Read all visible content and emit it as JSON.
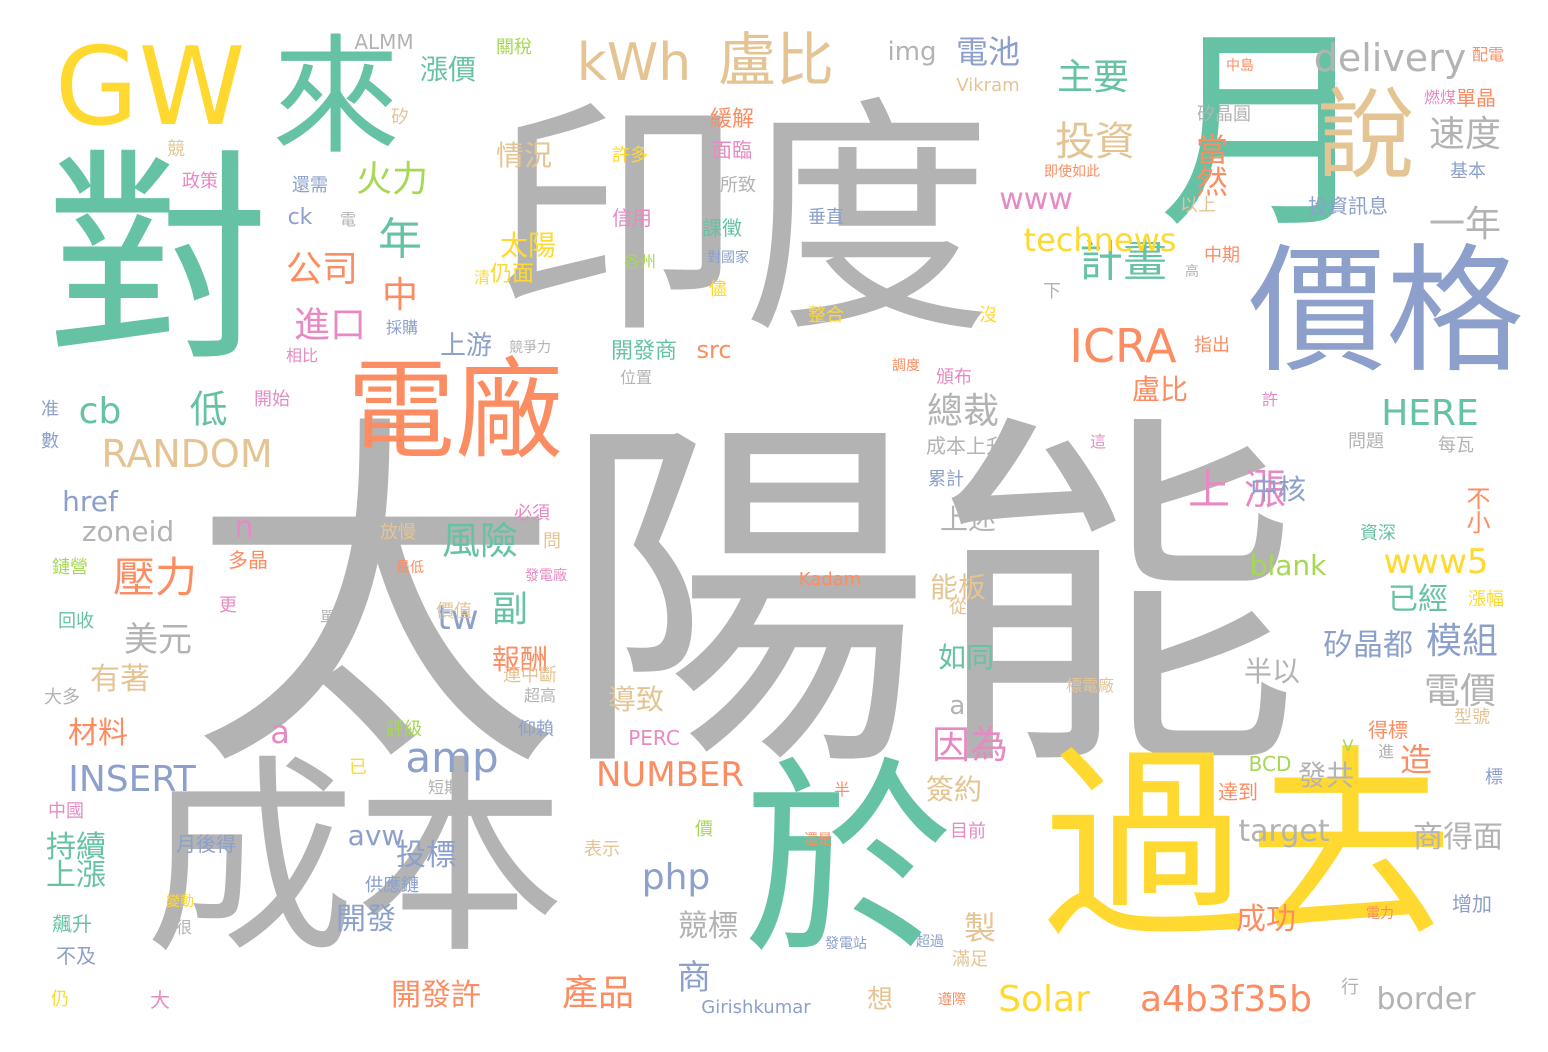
{
  "colors": {
    "gray": "#b3b3b3",
    "teal": "#66c2a5",
    "yellow": "#ffd92f",
    "blue": "#8da0cb",
    "orange": "#fc8d62",
    "tan": "#e5c494",
    "green": "#a6d854",
    "pink": "#e78ac3",
    "background": "#ffffff"
  },
  "words": [
    {
      "text": "太陽能",
      "color": "gray"
    },
    {
      "text": "印度",
      "color": "gray"
    },
    {
      "text": "成本",
      "color": "gray"
    },
    {
      "text": "過去",
      "color": "yellow"
    },
    {
      "text": "於",
      "color": "teal"
    },
    {
      "text": "對",
      "color": "teal"
    },
    {
      "text": "月",
      "color": "teal"
    },
    {
      "text": "價格",
      "color": "blue"
    },
    {
      "text": "電廠",
      "color": "orange"
    },
    {
      "text": "來",
      "color": "teal"
    },
    {
      "text": "GW",
      "color": "yellow"
    },
    {
      "text": "說",
      "color": "tan"
    },
    {
      "text": "kWh",
      "color": "tan"
    },
    {
      "text": "盧比",
      "color": "tan"
    },
    {
      "text": "delivery",
      "color": "gray"
    },
    {
      "text": "ICRA",
      "color": "orange"
    },
    {
      "text": "計畫",
      "color": "teal"
    },
    {
      "text": "投資",
      "color": "tan"
    },
    {
      "text": "主要",
      "color": "teal"
    },
    {
      "text": "速度",
      "color": "gray"
    },
    {
      "text": "一年",
      "color": "gray"
    },
    {
      "text": "technews",
      "color": "yellow"
    },
    {
      "text": "www",
      "color": "pink"
    },
    {
      "text": "當然",
      "color": "orange"
    },
    {
      "text": "火力",
      "color": "green"
    },
    {
      "text": "年",
      "color": "teal"
    },
    {
      "text": "公司",
      "color": "orange"
    },
    {
      "text": "中",
      "color": "orange"
    },
    {
      "text": "進口",
      "color": "pink"
    },
    {
      "text": "amp",
      "color": "blue"
    },
    {
      "text": "RANDOM",
      "color": "tan"
    },
    {
      "text": "低",
      "color": "teal"
    },
    {
      "text": "cb",
      "color": "teal"
    },
    {
      "text": "壓力",
      "color": "orange"
    },
    {
      "text": "風險",
      "color": "teal"
    },
    {
      "text": "因為",
      "color": "pink"
    },
    {
      "text": "總裁",
      "color": "gray"
    },
    {
      "text": "上漲",
      "color": "pink"
    },
    {
      "text": "盧比",
      "color": "orange"
    },
    {
      "text": "HERE",
      "color": "teal"
    },
    {
      "text": "www5",
      "color": "yellow"
    },
    {
      "text": "INSERT",
      "color": "blue"
    },
    {
      "text": "NUMBER",
      "color": "orange"
    },
    {
      "text": "php",
      "color": "blue"
    },
    {
      "text": "Solar",
      "color": "yellow"
    },
    {
      "text": "a4b3f35b",
      "color": "orange"
    },
    {
      "text": "border",
      "color": "gray"
    },
    {
      "text": "target",
      "color": "gray"
    },
    {
      "text": "商得面",
      "color": "gray"
    },
    {
      "text": "電價",
      "color": "gray"
    },
    {
      "text": "模組",
      "color": "blue"
    },
    {
      "text": "矽晶都",
      "color": "blue"
    },
    {
      "text": "已經",
      "color": "teal"
    },
    {
      "text": "美元",
      "color": "gray"
    },
    {
      "text": "tw",
      "color": "blue"
    },
    {
      "text": "副",
      "color": "teal"
    },
    {
      "text": "產品",
      "color": "orange"
    },
    {
      "text": "商",
      "color": "blue"
    },
    {
      "text": "成功",
      "color": "orange"
    },
    {
      "text": "競標",
      "color": "gray"
    },
    {
      "text": "開發許",
      "color": "orange"
    },
    {
      "text": "投標",
      "color": "blue"
    },
    {
      "text": "開發",
      "color": "blue"
    },
    {
      "text": "持續",
      "color": "teal"
    },
    {
      "text": "上漲",
      "color": "teal"
    },
    {
      "text": "材料",
      "color": "orange"
    },
    {
      "text": "有著",
      "color": "tan"
    },
    {
      "text": "zoneid",
      "color": "gray"
    },
    {
      "text": "href",
      "color": "blue"
    },
    {
      "text": "電池",
      "color": "blue"
    },
    {
      "text": "img",
      "color": "gray"
    },
    {
      "text": "漲價",
      "color": "teal"
    },
    {
      "text": "情況",
      "color": "tan"
    },
    {
      "text": "太陽",
      "color": "yellow"
    },
    {
      "text": "仍面",
      "color": "yellow"
    },
    {
      "text": "上游",
      "color": "blue"
    },
    {
      "text": "src",
      "color": "orange"
    },
    {
      "text": "開發商",
      "color": "teal"
    },
    {
      "text": "報酬",
      "color": "orange"
    },
    {
      "text": "導致",
      "color": "tan"
    },
    {
      "text": "簽約",
      "color": "tan"
    },
    {
      "text": "如同",
      "color": "teal"
    },
    {
      "text": "能板",
      "color": "tan"
    },
    {
      "text": "中核",
      "color": "blue"
    },
    {
      "text": "blank",
      "color": "green"
    },
    {
      "text": "半以",
      "color": "gray"
    },
    {
      "text": "上述",
      "color": "gray"
    },
    {
      "text": "alt",
      "color": "gray"
    },
    {
      "text": "a",
      "color": "pink"
    },
    {
      "text": "avw",
      "color": "blue"
    },
    {
      "text": "發共",
      "color": "gray"
    },
    {
      "text": "造",
      "color": "orange"
    },
    {
      "text": "製",
      "color": "tan"
    },
    {
      "text": "不小",
      "color": "orange"
    },
    {
      "text": "n",
      "color": "pink"
    },
    {
      "text": "ck",
      "color": "blue"
    },
    {
      "text": "電",
      "color": "gray"
    },
    {
      "text": "ALMM",
      "color": "gray"
    },
    {
      "text": "關稅",
      "color": "green"
    },
    {
      "text": "Vikram",
      "color": "tan"
    },
    {
      "text": "矽晶圓",
      "color": "gray"
    },
    {
      "text": "單晶",
      "color": "orange"
    },
    {
      "text": "配電",
      "color": "orange"
    },
    {
      "text": "緩解",
      "color": "orange"
    },
    {
      "text": "面臨",
      "color": "pink"
    },
    {
      "text": "許多",
      "color": "yellow"
    },
    {
      "text": "所致",
      "color": "gray"
    },
    {
      "text": "信用",
      "color": "pink"
    },
    {
      "text": "課徵",
      "color": "teal"
    },
    {
      "text": "垂直",
      "color": "blue"
    },
    {
      "text": "整合",
      "color": "yellow"
    },
    {
      "text": "以上",
      "color": "tan"
    },
    {
      "text": "投資訊息",
      "color": "blue"
    },
    {
      "text": "政策",
      "color": "pink"
    },
    {
      "text": "還需",
      "color": "blue"
    },
    {
      "text": "矽",
      "color": "tan"
    },
    {
      "text": "競",
      "color": "tan"
    },
    {
      "text": "基本",
      "color": "blue"
    },
    {
      "text": "燃煤",
      "color": "pink"
    },
    {
      "text": "中國",
      "color": "pink"
    },
    {
      "text": "月後得",
      "color": "blue"
    },
    {
      "text": "表示",
      "color": "tan"
    },
    {
      "text": "目前",
      "color": "pink"
    },
    {
      "text": "供應鏈",
      "color": "blue"
    },
    {
      "text": "飆升",
      "color": "teal"
    },
    {
      "text": "不及",
      "color": "blue"
    },
    {
      "text": "仍",
      "color": "yellow"
    },
    {
      "text": "大",
      "color": "pink"
    },
    {
      "text": "想",
      "color": "tan"
    },
    {
      "text": "Girishkumar",
      "color": "blue"
    },
    {
      "text": "滿足",
      "color": "tan"
    },
    {
      "text": "行",
      "color": "gray"
    },
    {
      "text": "增加",
      "color": "blue"
    },
    {
      "text": "達到",
      "color": "orange"
    },
    {
      "text": "BCD",
      "color": "green"
    },
    {
      "text": "PERC",
      "color": "pink"
    },
    {
      "text": "評級",
      "color": "green"
    },
    {
      "text": "仰賴",
      "color": "blue"
    },
    {
      "text": "短期",
      "color": "gray"
    },
    {
      "text": "價值",
      "color": "tan"
    },
    {
      "text": "必須",
      "color": "pink"
    },
    {
      "text": "放慢",
      "color": "tan"
    },
    {
      "text": "多晶",
      "color": "orange"
    },
    {
      "text": "鏈營",
      "color": "green"
    },
    {
      "text": "回收",
      "color": "teal"
    },
    {
      "text": "大多",
      "color": "gray"
    },
    {
      "text": "准",
      "color": "blue"
    },
    {
      "text": "數",
      "color": "blue"
    },
    {
      "text": "開始",
      "color": "pink"
    },
    {
      "text": "相比",
      "color": "pink"
    },
    {
      "text": "採購",
      "color": "blue"
    },
    {
      "text": "競爭力",
      "color": "gray"
    },
    {
      "text": "位置",
      "color": "gray"
    },
    {
      "text": "頒布",
      "color": "pink"
    },
    {
      "text": "調度",
      "color": "orange"
    },
    {
      "text": "成本上升",
      "color": "gray"
    },
    {
      "text": "累計",
      "color": "blue"
    },
    {
      "text": "Kadam",
      "color": "orange"
    },
    {
      "text": "發電廠",
      "color": "pink"
    },
    {
      "text": "最低",
      "color": "orange"
    },
    {
      "text": "標電廠",
      "color": "tan"
    },
    {
      "text": "得標",
      "color": "orange"
    },
    {
      "text": "型號",
      "color": "tan"
    },
    {
      "text": "標",
      "color": "blue"
    },
    {
      "text": "進",
      "color": "gray"
    },
    {
      "text": "問題",
      "color": "gray"
    },
    {
      "text": "資深",
      "color": "teal"
    },
    {
      "text": "每瓦",
      "color": "gray"
    },
    {
      "text": "漲幅",
      "color": "yellow"
    },
    {
      "text": "中期",
      "color": "orange"
    },
    {
      "text": "指出",
      "color": "orange"
    },
    {
      "text": "許",
      "color": "pink"
    },
    {
      "text": "這",
      "color": "pink"
    },
    {
      "text": "即使如此",
      "color": "orange"
    },
    {
      "text": "中島",
      "color": "orange"
    },
    {
      "text": "對國家",
      "color": "blue"
    },
    {
      "text": "各州",
      "color": "green"
    },
    {
      "text": "儘",
      "color": "yellow"
    },
    {
      "text": "沒",
      "color": "yellow"
    },
    {
      "text": "高",
      "color": "gray"
    },
    {
      "text": "清",
      "color": "yellow"
    },
    {
      "text": "超高",
      "color": "gray"
    },
    {
      "text": "連中斷",
      "color": "tan"
    },
    {
      "text": "已",
      "color": "yellow"
    },
    {
      "text": "半",
      "color": "orange"
    },
    {
      "text": "還是",
      "color": "orange"
    },
    {
      "text": "價",
      "color": "green"
    },
    {
      "text": "變動",
      "color": "yellow"
    },
    {
      "text": "很",
      "color": "gray"
    },
    {
      "text": "超過",
      "color": "blue"
    },
    {
      "text": "發電站",
      "color": "blue"
    },
    {
      "text": "電力",
      "color": "orange"
    },
    {
      "text": "遵際",
      "color": "orange"
    },
    {
      "text": "更",
      "color": "pink"
    },
    {
      "text": "單",
      "color": "gray"
    },
    {
      "text": "從",
      "color": "tan"
    },
    {
      "text": "V",
      "color": "green"
    },
    {
      "text": "下",
      "color": "gray"
    },
    {
      "text": "問",
      "color": "tan"
    }
  ]
}
